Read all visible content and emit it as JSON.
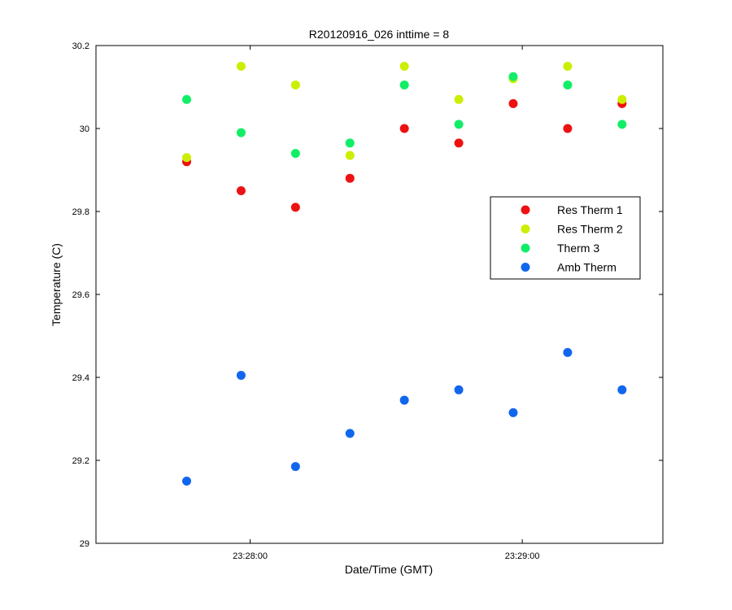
{
  "chart_data": {
    "type": "scatter",
    "title": "R20120916_026 inttime = 8",
    "xlabel": "Date/Time (GMT)",
    "ylabel": "Temperature (C)",
    "ylim": [
      29,
      30.2
    ],
    "yticks": [
      29,
      29.2,
      29.4,
      29.6,
      29.8,
      30,
      30.2
    ],
    "ytick_labels": [
      "29",
      "29.2",
      "29.4",
      "29.6",
      "29.8",
      "30",
      "30.2"
    ],
    "xlim": [
      "23:27:25",
      "23:29:30"
    ],
    "xticks": [
      "23:27:59",
      "23:28:59"
    ],
    "xtick_labels": [
      "23:28:00",
      "23:29:00"
    ],
    "legend_position": "right",
    "grid": false,
    "x": [
      "23:27:45",
      "23:27:57",
      "23:28:09",
      "23:28:21",
      "23:28:33",
      "23:28:45",
      "23:28:57",
      "23:29:09",
      "23:29:21"
    ],
    "series": [
      {
        "name": "Res Therm 1",
        "color": "#ee1111",
        "values": [
          29.92,
          29.85,
          29.81,
          29.88,
          30.0,
          29.965,
          30.06,
          30.0,
          30.06
        ]
      },
      {
        "name": "Res Therm 2",
        "color": "#ccee00",
        "values": [
          29.93,
          30.15,
          30.105,
          29.935,
          30.15,
          30.07,
          30.12,
          30.15,
          30.07
        ]
      },
      {
        "name": "Therm 3",
        "color": "#11ee66",
        "values": [
          30.07,
          29.99,
          29.94,
          29.965,
          30.105,
          30.01,
          30.125,
          30.105,
          30.01
        ]
      },
      {
        "name": "Amb Therm",
        "color": "#1166ee",
        "values": [
          29.15,
          29.405,
          29.185,
          29.265,
          29.345,
          29.37,
          29.315,
          29.46,
          29.37
        ]
      }
    ]
  }
}
